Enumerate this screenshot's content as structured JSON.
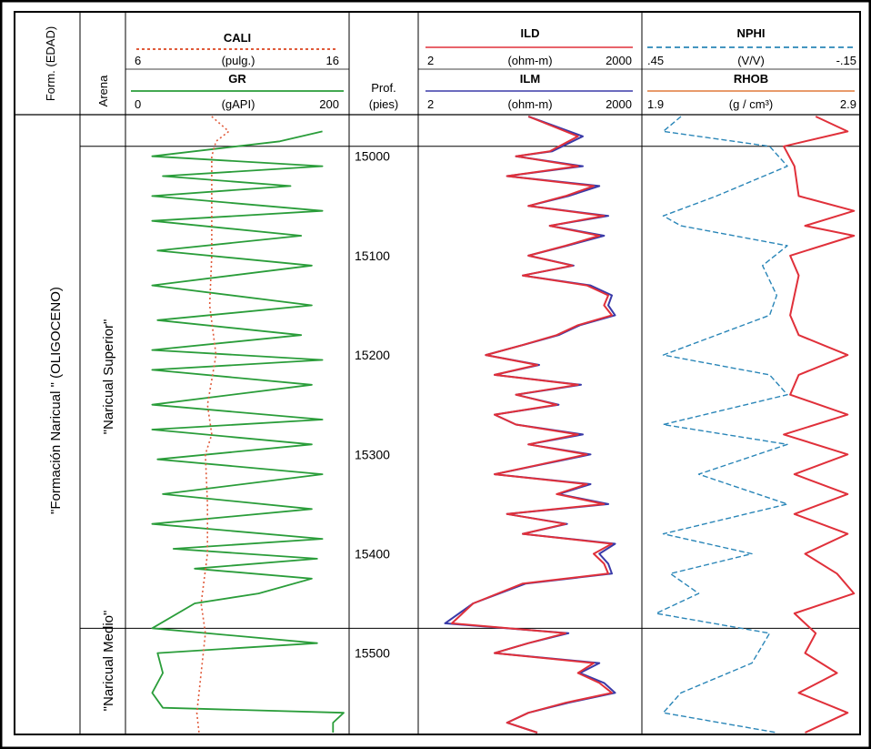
{
  "columns": {
    "formation": "Form. (EDAD)",
    "arena": "Arena",
    "depth": {
      "label1": "Prof.",
      "label2": "(pies)"
    }
  },
  "tracks": {
    "cali": {
      "name": "CALI",
      "min": "6",
      "unit": "(pulg.)",
      "max": "16",
      "color": "#e05a3a"
    },
    "gr": {
      "name": "GR",
      "min": "0",
      "unit": "(gAPI)",
      "max": "200",
      "color": "#2a9d3a"
    },
    "ild": {
      "name": "ILD",
      "min": "2",
      "unit": "(ohm-m)",
      "max": "2000",
      "color": "#e0303a"
    },
    "ilm": {
      "name": "ILM",
      "min": "2",
      "unit": "(ohm-m)",
      "max": "2000",
      "color": "#3a3aa8"
    },
    "nphi": {
      "name": "NPHI",
      "min": ".45",
      "unit": "(V/V)",
      "max": "-.15",
      "color": "#2a86b8"
    },
    "rhob": {
      "name": "RHOB",
      "min": "1.9",
      "unit": "(g / cm³)",
      "max": "2.9",
      "color": "#e0303a"
    }
  },
  "zones": {
    "formation": "\"Formación Naricual \" (OLIGOCENO)",
    "upper": "\"Naricual Superior\"",
    "middle": "\"Naricual Medio\""
  },
  "chart_data": {
    "type": "line",
    "title": "",
    "ylabel": "Prof. (pies)",
    "ylim": [
      15580,
      14960
    ],
    "y_ticks": [
      15000,
      15100,
      15200,
      15300,
      15400,
      15500
    ],
    "zone_tops": [
      14990,
      15475
    ],
    "series": [
      {
        "name": "CALI",
        "unit": "(pulg.)",
        "xlim": [
          6,
          16
        ],
        "depth": [
          14960,
          14975,
          14985,
          15000,
          15050,
          15100,
          15150,
          15200,
          15250,
          15280,
          15300,
          15350,
          15400,
          15450,
          15480,
          15500,
          15520,
          15540,
          15560,
          15580
        ],
        "values": [
          9.8,
          10.6,
          10.0,
          9.8,
          9.8,
          9.8,
          9.7,
          10.0,
          9.6,
          9.8,
          9.5,
          9.6,
          9.6,
          9.3,
          9.5,
          9.4,
          9.3,
          9.2,
          9.1,
          9.2
        ]
      },
      {
        "name": "GR",
        "unit": "(gAPI)",
        "xlim": [
          0,
          200
        ],
        "depth": [
          14975,
          14985,
          15000,
          15010,
          15020,
          15030,
          15040,
          15055,
          15065,
          15080,
          15095,
          15110,
          15130,
          15150,
          15165,
          15180,
          15195,
          15205,
          15215,
          15230,
          15250,
          15265,
          15275,
          15290,
          15305,
          15320,
          15340,
          15355,
          15370,
          15385,
          15395,
          15405,
          15415,
          15425,
          15440,
          15450,
          15475,
          15490,
          15500,
          15520,
          15540,
          15555,
          15560,
          15570,
          15580
        ],
        "values": [
          180,
          140,
          20,
          180,
          30,
          150,
          20,
          180,
          20,
          160,
          25,
          170,
          20,
          170,
          25,
          160,
          20,
          180,
          20,
          170,
          20,
          180,
          20,
          170,
          25,
          180,
          30,
          170,
          20,
          180,
          40,
          175,
          60,
          170,
          120,
          60,
          20,
          175,
          25,
          30,
          20,
          30,
          200,
          190,
          190
        ]
      },
      {
        "name": "ILD",
        "unit": "(ohm-m)",
        "xlim": [
          2,
          2000
        ],
        "scale": "log",
        "depth": [
          14960,
          14980,
          14995,
          15000,
          15010,
          15020,
          15030,
          15040,
          15050,
          15060,
          15070,
          15080,
          15090,
          15100,
          15110,
          15120,
          15130,
          15140,
          15150,
          15160,
          15170,
          15180,
          15190,
          15200,
          15210,
          15220,
          15230,
          15240,
          15250,
          15260,
          15270,
          15280,
          15290,
          15300,
          15310,
          15320,
          15330,
          15340,
          15350,
          15360,
          15370,
          15380,
          15390,
          15400,
          15410,
          15420,
          15430,
          15450,
          15470,
          15480,
          15490,
          15500,
          15510,
          15520,
          15530,
          15540,
          15550,
          15560,
          15570,
          15580
        ],
        "values": [
          60,
          300,
          120,
          40,
          300,
          30,
          500,
          200,
          60,
          700,
          120,
          600,
          200,
          60,
          250,
          50,
          400,
          800,
          700,
          900,
          300,
          150,
          50,
          15,
          80,
          20,
          300,
          40,
          150,
          20,
          40,
          300,
          60,
          400,
          90,
          20,
          400,
          150,
          700,
          30,
          200,
          50,
          900,
          500,
          700,
          800,
          50,
          10,
          5,
          200,
          60,
          20,
          500,
          300,
          600,
          900,
          200,
          60,
          30,
          80
        ]
      },
      {
        "name": "ILM",
        "unit": "(ohm-m)",
        "xlim": [
          2,
          2000
        ],
        "scale": "log",
        "depth": [
          14960,
          14980,
          14995,
          15000,
          15010,
          15020,
          15030,
          15040,
          15050,
          15060,
          15070,
          15080,
          15090,
          15100,
          15110,
          15120,
          15130,
          15140,
          15150,
          15160,
          15170,
          15180,
          15190,
          15200,
          15210,
          15220,
          15230,
          15240,
          15250,
          15260,
          15270,
          15280,
          15290,
          15300,
          15310,
          15320,
          15330,
          15340,
          15350,
          15360,
          15370,
          15380,
          15390,
          15400,
          15410,
          15420,
          15430,
          15450,
          15470,
          15480,
          15490,
          15500,
          15510,
          15520,
          15530,
          15540,
          15550,
          15560,
          15570,
          15580
        ],
        "values": [
          60,
          350,
          130,
          40,
          350,
          30,
          600,
          220,
          60,
          800,
          120,
          700,
          210,
          60,
          260,
          50,
          450,
          900,
          800,
          1000,
          320,
          160,
          50,
          15,
          85,
          20,
          330,
          40,
          160,
          20,
          40,
          350,
          60,
          450,
          95,
          20,
          450,
          160,
          800,
          30,
          210,
          50,
          1000,
          600,
          800,
          900,
          55,
          10,
          4,
          220,
          60,
          20,
          600,
          320,
          700,
          1000,
          220,
          60,
          30,
          80
        ]
      },
      {
        "name": "NPHI",
        "unit": "(V/V)",
        "xlim": [
          0.45,
          -0.15
        ],
        "depth": [
          14960,
          14975,
          14990,
          15010,
          15040,
          15060,
          15070,
          15090,
          15110,
          15140,
          15160,
          15200,
          15220,
          15240,
          15270,
          15290,
          15320,
          15350,
          15380,
          15400,
          15420,
          15440,
          15460,
          15480,
          15510,
          15540,
          15560,
          15580
        ],
        "values": [
          0.35,
          0.4,
          0.1,
          0.05,
          0.25,
          0.4,
          0.35,
          0.05,
          0.12,
          0.08,
          0.1,
          0.4,
          0.1,
          0.05,
          0.4,
          0.05,
          0.3,
          0.05,
          0.4,
          0.15,
          0.38,
          0.3,
          0.42,
          0.1,
          0.15,
          0.35,
          0.4,
          0.08
        ]
      },
      {
        "name": "RHOB",
        "unit": "(g / cm³)",
        "xlim": [
          1.9,
          2.9
        ],
        "depth": [
          14960,
          14975,
          14990,
          15010,
          15040,
          15055,
          15070,
          15080,
          15100,
          15120,
          15140,
          15160,
          15180,
          15200,
          15220,
          15240,
          15260,
          15280,
          15300,
          15320,
          15340,
          15360,
          15380,
          15400,
          15420,
          15440,
          15460,
          15480,
          15500,
          15520,
          15540,
          15560,
          15580
        ],
        "values": [
          2.7,
          2.85,
          2.55,
          2.6,
          2.62,
          2.88,
          2.65,
          2.88,
          2.58,
          2.62,
          2.6,
          2.58,
          2.62,
          2.85,
          2.62,
          2.58,
          2.85,
          2.55,
          2.85,
          2.6,
          2.85,
          2.6,
          2.85,
          2.65,
          2.8,
          2.88,
          2.6,
          2.7,
          2.65,
          2.8,
          2.62,
          2.85,
          2.65
        ]
      }
    ]
  }
}
